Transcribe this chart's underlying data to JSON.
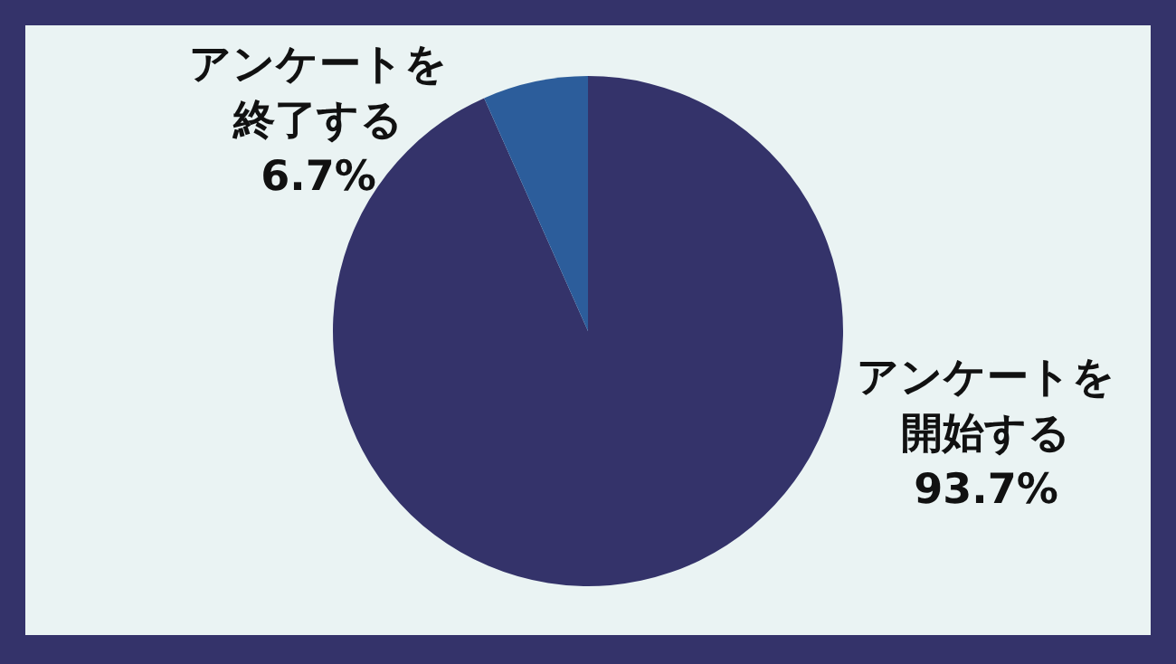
{
  "chart_data": {
    "type": "pie",
    "categories": [
      "アンケートを開始する",
      "アンケートを終了する"
    ],
    "values": [
      93.7,
      6.7
    ],
    "colors": [
      "#34336a",
      "#2c5d9b"
    ],
    "value_labels": [
      "93.7%",
      "6.7%"
    ]
  }
}
